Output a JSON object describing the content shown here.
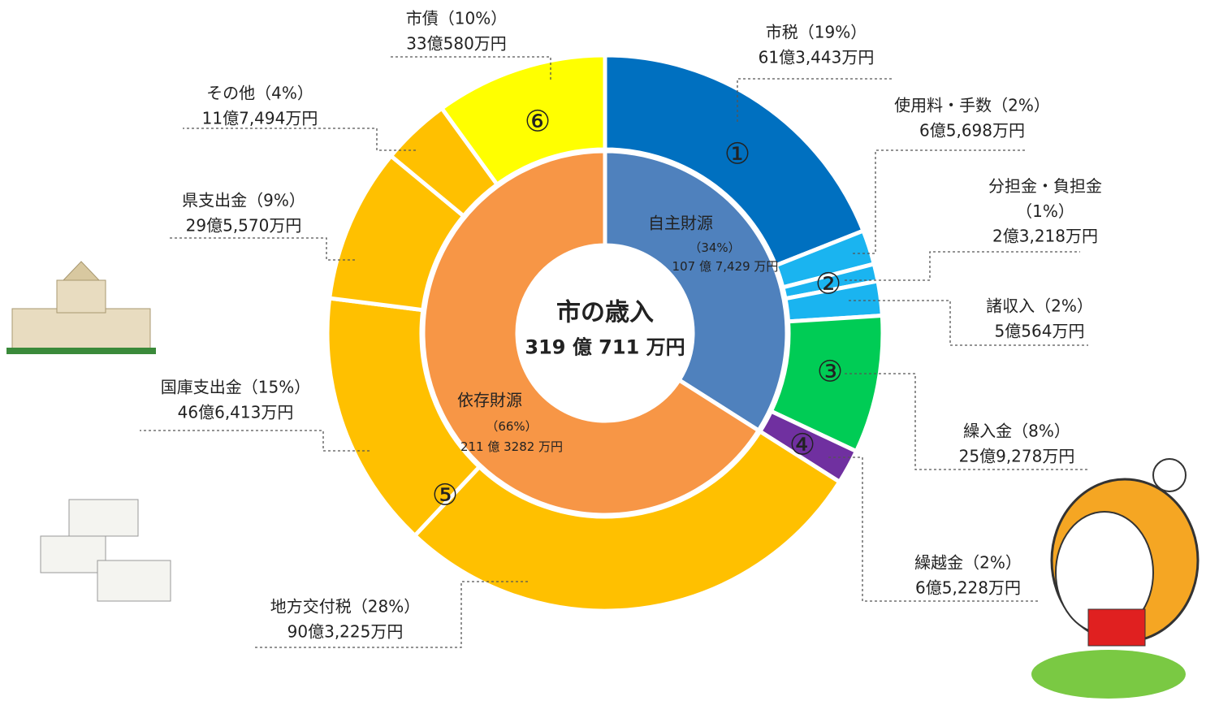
{
  "chart_data": {
    "type": "donut",
    "center_title": "市の歳入",
    "center_label": "319 億 711 万円",
    "outer": {
      "categories": [
        "市税（19%）",
        "使用料・手数（2%）",
        "分担金・負担金\n（1%）",
        "諸収入（2%）",
        "繰入金（8%）",
        "繰越金（2%）",
        "地方交付税（28%）",
        "国庫支出金（15%）",
        "県支出金（9%）",
        "その他（4%）",
        "市債（10%）"
      ],
      "values": [
        19,
        2,
        1,
        2,
        8,
        2,
        28,
        15,
        9,
        4,
        10
      ],
      "amounts": [
        "61億3,443万円",
        "6億5,698万円",
        "2億3,218万円",
        "5億564万円",
        "25億9,278万円",
        "6億5,228万円",
        "90億3,225万円",
        "46億6,413万円",
        "29億5,570万円",
        "11億7,494万円",
        "33億580万円"
      ],
      "colors": [
        "#0070c0",
        "#1ab4f0",
        "#1ab4f0",
        "#1ab4f0",
        "#00cc55",
        "#7030a0",
        "#ffc000",
        "#ffc000",
        "#ffc000",
        "#ffc000",
        "#ffff00"
      ]
    },
    "inner": {
      "categories": [
        "自主財源",
        "依存財源"
      ],
      "values": [
        34,
        66
      ],
      "value_labels": [
        "（34%）",
        "（66%）"
      ],
      "amounts": [
        "107 億 7,429 万円",
        "211 億 3282 万円"
      ],
      "colors": [
        "#4f81bd",
        "#f79646"
      ]
    },
    "markers": [
      "①",
      "②",
      "③",
      "④",
      "⑤",
      "⑥"
    ]
  }
}
